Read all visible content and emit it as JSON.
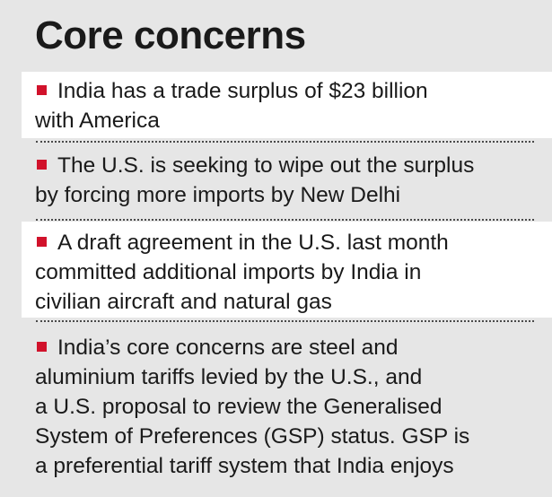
{
  "title": "Core concerns",
  "bullet_color": "#d1122b",
  "items": [
    {
      "lines": [
        "India has a trade surplus of $23 billion",
        "with America"
      ]
    },
    {
      "lines": [
        "The U.S. is seeking to wipe out the surplus",
        "by forcing more imports by New Delhi"
      ]
    },
    {
      "lines": [
        "A draft agreement in the U.S. last month",
        "committed additional imports by India in",
        "civilian aircraft and natural gas"
      ]
    },
    {
      "lines": [
        "India’s core concerns are steel and",
        "aluminium tariffs levied by the U.S., and",
        "a U.S. proposal to review the Generalised",
        "System of Preferences (GSP) status. GSP is",
        "a preferential tariff system that India enjoys"
      ]
    }
  ]
}
